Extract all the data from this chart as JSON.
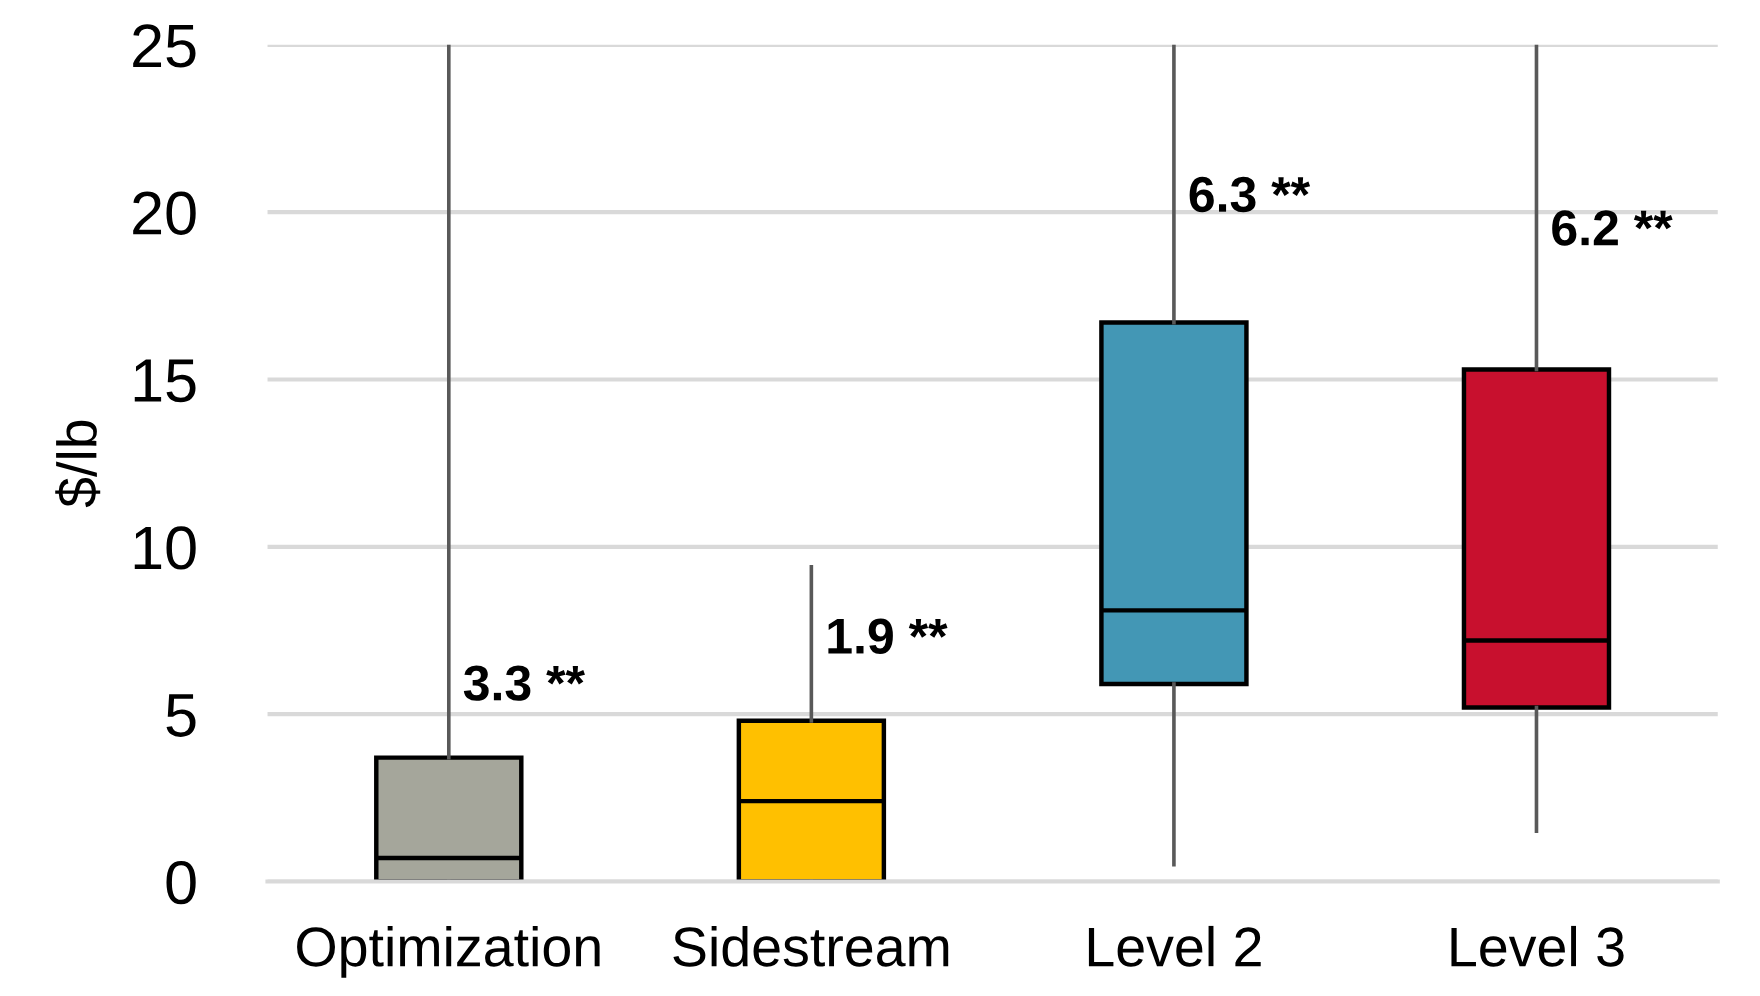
{
  "chart_data": {
    "type": "box",
    "categories": [
      "Optimization",
      "Sidestream",
      "Level 2",
      "Level 3"
    ],
    "boxes": [
      {
        "low": 0,
        "q1": 0,
        "median": 0.7,
        "q3": 3.7,
        "high": 25
      },
      {
        "low": 0,
        "q1": 0,
        "median": 2.4,
        "q3": 4.8,
        "high": 9.4
      },
      {
        "low": 0.5,
        "q1": 5.9,
        "median": 8.1,
        "q3": 16.7,
        "high": 25
      },
      {
        "low": 1.5,
        "q1": 5.2,
        "median": 7.2,
        "q3": 15.3,
        "high": 25
      }
    ],
    "colors": [
      "#a5a69b",
      "#ffc000",
      "#4397b5",
      "#c8102e"
    ],
    "ylabel": "$/lb",
    "ylim": [
      0,
      25
    ],
    "yticks": [
      0,
      5,
      10,
      15,
      20,
      25
    ],
    "grid": "y",
    "annotations": [
      {
        "text": "3.3 **",
        "x": "Optimization",
        "y": 5.8
      },
      {
        "text": "1.9 **",
        "x": "Sidestream",
        "y": 7.2
      },
      {
        "text": "6.3 **",
        "x": "Level 2",
        "y": 20.4
      },
      {
        "text": "6.2 **",
        "x": "Level 3",
        "y": 19.4
      }
    ]
  }
}
